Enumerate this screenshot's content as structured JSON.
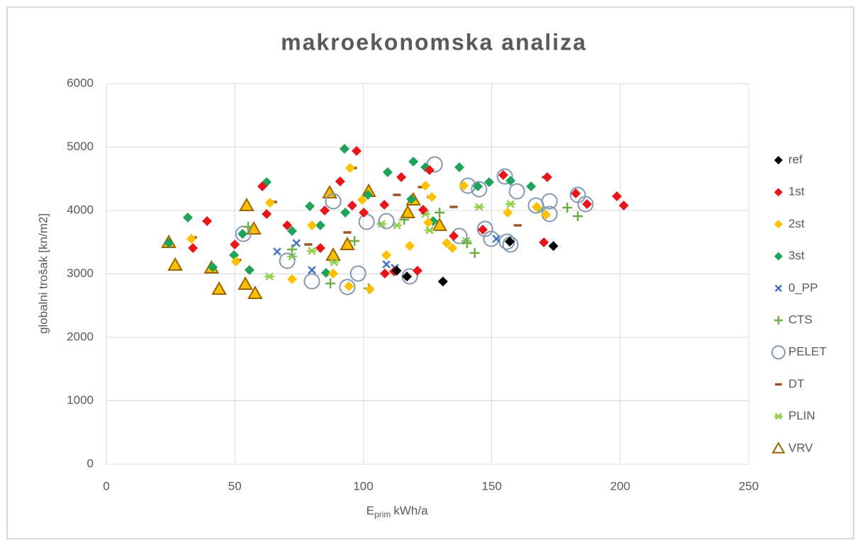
{
  "chart_data": {
    "type": "scatter",
    "title": "makroekonomska analiza",
    "x_label": {
      "main": "E",
      "sub": "prim",
      "unit": "kWh/a"
    },
    "y_label": "globalni trošak [kn/m2]",
    "xlim": [
      0,
      250
    ],
    "xticks": [
      0,
      50,
      100,
      150,
      200,
      250
    ],
    "ylim": [
      0,
      6000
    ],
    "yticks": [
      0,
      1000,
      2000,
      3000,
      4000,
      5000,
      6000
    ],
    "grid": true,
    "legend": "right",
    "series": [
      {
        "name": "ref",
        "color": "#000000",
        "marker": "diamond",
        "x": [
          117,
          131,
          157,
          174,
          113
        ],
        "y": [
          2960,
          2880,
          3510,
          3440,
          3050
        ]
      },
      {
        "name": "1st",
        "color": "#e8161b",
        "marker": "diamond",
        "x": [
          39.2,
          33.7,
          60.7,
          62.4,
          85,
          91,
          97.4,
          95.7,
          100.2,
          108.4,
          114.8,
          123.3,
          108.2,
          125.8,
          146.5,
          154.5,
          170.3,
          171.6,
          182.7,
          187.1,
          198.7,
          201.4,
          83.3,
          135.2,
          50,
          70.4,
          112,
          121.1
        ],
        "y": [
          3832,
          3408,
          4380,
          3944,
          4000,
          4458,
          4939,
          4078,
          3967,
          3006,
          4525,
          4011,
          4089,
          4637,
          3698,
          4558,
          3497,
          4525,
          4268,
          4100,
          4223,
          4078,
          3408,
          3598,
          3464,
          3765,
          3039,
          3050
        ]
      },
      {
        "name": "2st",
        "color": "#ffc000",
        "marker": "diamond",
        "x": [
          33.1,
          50.5,
          63.7,
          80,
          94.9,
          99.6,
          94.4,
          118.1,
          134.7,
          132.5,
          139.1,
          126.7,
          156.2,
          167.5,
          171.1,
          124.2,
          102.6,
          88.3,
          72.3,
          109,
          125.3
        ],
        "y": [
          3553,
          3196,
          4123,
          3765,
          4670,
          4168,
          2804,
          3441,
          3408,
          3486,
          4391,
          4212,
          3967,
          4056,
          3933,
          4391,
          2760,
          3006,
          2916,
          3296,
          3810
        ]
      },
      {
        "name": "3st",
        "color": "#1fa35b",
        "marker": "diamond",
        "x": [
          24.3,
          31.7,
          41.4,
          53,
          55.7,
          62.4,
          72.3,
          79.2,
          83.3,
          92.7,
          93,
          101.8,
          109.5,
          119.5,
          124.2,
          127.2,
          137.4,
          144.6,
          149,
          157.3,
          165.3,
          118.7,
          49.7,
          85.5
        ],
        "y": [
          3486,
          3888,
          3106,
          3631,
          3061,
          4447,
          3676,
          4067,
          3765,
          4972,
          3967,
          4246,
          4603,
          4771,
          4682,
          3832,
          4682,
          4380,
          4447,
          4469,
          4380,
          4179,
          3296,
          3017
        ]
      },
      {
        "name": "0_PP",
        "color": "#4472c4",
        "marker": "x",
        "x": [
          109,
          112.3,
          151.8,
          74,
          66.5,
          80
        ],
        "y": [
          3151,
          3095,
          3553,
          3486,
          3352,
          3061
        ]
      },
      {
        "name": "CTS",
        "color": "#70ad47",
        "marker": "plus",
        "x": [
          102.1,
          87.2,
          72.3,
          143.4,
          140.4,
          179.4,
          183.5,
          96.6,
          115.9,
          55.2,
          129.7
        ],
        "y": [
          2771,
          2849,
          3385,
          3330,
          3486,
          4045,
          3911,
          3520,
          3855,
          3743,
          3967
        ]
      },
      {
        "name": "PELET",
        "color": "#8497b0",
        "marker": "circle",
        "x": [
          53.3,
          80,
          93.8,
          101.3,
          109,
          118.1,
          127.8,
          140.7,
          145.1,
          147.4,
          149.8,
          155.9,
          155.1,
          159.8,
          167.2,
          172.5,
          172.5,
          183.5,
          186.5,
          157.3,
          70.4,
          137.4,
          88.3,
          98
        ],
        "y": [
          3631,
          2883,
          2793,
          3821,
          3832,
          2961,
          4726,
          4391,
          4335,
          3709,
          3553,
          3508,
          4536,
          4302,
          4078,
          3944,
          4145,
          4246,
          4100,
          3464,
          3207,
          3598,
          4145,
          3006
        ]
      },
      {
        "name": "DT",
        "color": "#a0522d",
        "marker": "dash",
        "x": [
          33.7,
          64.9,
          78.6,
          93.8,
          96,
          122.8,
          126.3,
          135.2,
          171.1,
          160.1,
          51,
          113.1
        ],
        "y": [
          3575,
          4134,
          3464,
          3654,
          4670,
          4369,
          4212,
          4056,
          4525,
          3765,
          3218,
          4246
        ]
      },
      {
        "name": "PLIN",
        "color": "#92d050",
        "marker": "star",
        "x": [
          80,
          88.7,
          113.1,
          124.2,
          140.1,
          145.1,
          168.9,
          157.3,
          107.1,
          72.3,
          63.5,
          125.8
        ],
        "y": [
          3363,
          3184,
          3765,
          3944,
          3520,
          4056,
          4011,
          4100,
          3788,
          3274,
          2961,
          3687
        ]
      },
      {
        "name": "VRV",
        "color": "#9c6500",
        "marker": "triangle",
        "x": [
          24.3,
          26.8,
          40.9,
          43.9,
          54.6,
          54.1,
          57.9,
          57.4,
          86.9,
          93.8,
          102.1,
          119.5,
          117.3,
          88.3,
          129.7
        ],
        "y": [
          3497,
          3140,
          3095,
          2760,
          4078,
          2838,
          2693,
          3709,
          4279,
          3464,
          4302,
          4168,
          3967,
          3296,
          3765
        ]
      }
    ]
  }
}
